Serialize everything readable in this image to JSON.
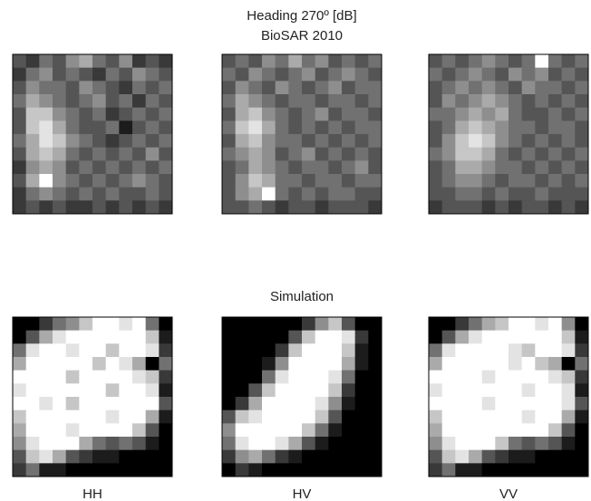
{
  "chart_data": [
    {
      "type": "heatmap",
      "clim": [
        0,
        9
      ],
      "values": [
        [
          3,
          2,
          4,
          3,
          5,
          6,
          4,
          3,
          5,
          2,
          3,
          2
        ],
        [
          2,
          4,
          5,
          3,
          4,
          3,
          2,
          4,
          3,
          5,
          4,
          3
        ],
        [
          3,
          5,
          4,
          4,
          3,
          5,
          4,
          3,
          2,
          4,
          3,
          4
        ],
        [
          4,
          6,
          5,
          4,
          3,
          4,
          5,
          3,
          4,
          2,
          4,
          3
        ],
        [
          3,
          7,
          7,
          5,
          4,
          3,
          4,
          2,
          3,
          4,
          3,
          4
        ],
        [
          3,
          7,
          8,
          6,
          4,
          3,
          3,
          4,
          1,
          3,
          4,
          3
        ],
        [
          4,
          6,
          8,
          7,
          5,
          4,
          3,
          2,
          3,
          4,
          3,
          4
        ],
        [
          3,
          6,
          7,
          6,
          4,
          3,
          4,
          3,
          4,
          3,
          5,
          3
        ],
        [
          2,
          5,
          6,
          5,
          3,
          4,
          3,
          4,
          3,
          4,
          3,
          4
        ],
        [
          3,
          6,
          9,
          5,
          4,
          3,
          4,
          3,
          4,
          5,
          4,
          3
        ],
        [
          2,
          4,
          5,
          4,
          3,
          4,
          3,
          4,
          3,
          3,
          4,
          3
        ],
        [
          2,
          3,
          2,
          3,
          2,
          2,
          3,
          2,
          3,
          2,
          3,
          2
        ]
      ]
    },
    {
      "type": "heatmap",
      "title": "Heading 270º [dB]",
      "subtitle": "BioSAR 2010",
      "clim": [
        0,
        9
      ],
      "values": [
        [
          3,
          4,
          3,
          5,
          4,
          6,
          4,
          5,
          3,
          4,
          3,
          4
        ],
        [
          4,
          3,
          5,
          4,
          3,
          4,
          5,
          3,
          4,
          5,
          4,
          3
        ],
        [
          3,
          5,
          4,
          3,
          5,
          4,
          3,
          4,
          5,
          3,
          4,
          4
        ],
        [
          4,
          6,
          5,
          4,
          3,
          4,
          4,
          3,
          4,
          4,
          3,
          4
        ],
        [
          3,
          6,
          7,
          5,
          4,
          3,
          4,
          5,
          3,
          4,
          4,
          3
        ],
        [
          4,
          7,
          8,
          6,
          4,
          3,
          4,
          3,
          4,
          3,
          4,
          4
        ],
        [
          3,
          6,
          7,
          5,
          4,
          4,
          3,
          4,
          3,
          4,
          3,
          4
        ],
        [
          4,
          5,
          6,
          5,
          3,
          4,
          5,
          3,
          4,
          3,
          4,
          3
        ],
        [
          3,
          4,
          6,
          5,
          4,
          3,
          4,
          4,
          3,
          4,
          5,
          3
        ],
        [
          3,
          5,
          7,
          6,
          4,
          4,
          3,
          4,
          4,
          3,
          4,
          4
        ],
        [
          3,
          5,
          6,
          9,
          4,
          3,
          4,
          3,
          4,
          4,
          3,
          3
        ],
        [
          3,
          3,
          4,
          3,
          2,
          3,
          3,
          2,
          3,
          3,
          3,
          2
        ]
      ]
    },
    {
      "type": "heatmap",
      "clim": [
        0,
        9
      ],
      "values": [
        [
          3,
          4,
          3,
          4,
          5,
          4,
          3,
          4,
          9,
          4,
          3,
          4
        ],
        [
          4,
          3,
          4,
          5,
          4,
          3,
          5,
          4,
          5,
          3,
          4,
          3
        ],
        [
          3,
          4,
          5,
          4,
          5,
          4,
          3,
          5,
          4,
          4,
          3,
          4
        ],
        [
          3,
          5,
          4,
          5,
          6,
          5,
          4,
          3,
          4,
          3,
          4,
          3
        ],
        [
          4,
          4,
          5,
          6,
          5,
          6,
          4,
          3,
          3,
          4,
          3,
          4
        ],
        [
          3,
          4,
          6,
          7,
          6,
          5,
          4,
          4,
          3,
          4,
          4,
          3
        ],
        [
          3,
          5,
          7,
          8,
          7,
          5,
          4,
          3,
          4,
          3,
          4,
          3
        ],
        [
          4,
          5,
          7,
          7,
          6,
          4,
          3,
          4,
          3,
          4,
          3,
          4
        ],
        [
          3,
          4,
          6,
          6,
          5,
          4,
          4,
          3,
          4,
          3,
          4,
          3
        ],
        [
          3,
          4,
          5,
          5,
          4,
          3,
          4,
          4,
          3,
          4,
          3,
          4
        ],
        [
          3,
          3,
          4,
          4,
          3,
          4,
          3,
          3,
          4,
          3,
          3,
          3
        ],
        [
          2,
          3,
          3,
          3,
          2,
          3,
          2,
          3,
          3,
          2,
          3,
          2
        ]
      ]
    },
    {
      "type": "heatmap",
      "xlabel": "HH",
      "clim": [
        0,
        9
      ],
      "values": [
        [
          0,
          0,
          2,
          4,
          5,
          7,
          9,
          9,
          8,
          9,
          4,
          0
        ],
        [
          0,
          3,
          6,
          8,
          9,
          9,
          9,
          9,
          9,
          9,
          7,
          1
        ],
        [
          4,
          8,
          9,
          9,
          8,
          9,
          9,
          7,
          9,
          9,
          8,
          2
        ],
        [
          6,
          9,
          9,
          9,
          9,
          9,
          7,
          9,
          8,
          6,
          0,
          4
        ],
        [
          9,
          9,
          9,
          9,
          7,
          9,
          9,
          9,
          9,
          8,
          7,
          2
        ],
        [
          8,
          9,
          9,
          9,
          9,
          9,
          9,
          7,
          9,
          9,
          8,
          1
        ],
        [
          9,
          9,
          8,
          9,
          7,
          9,
          9,
          9,
          9,
          9,
          9,
          3
        ],
        [
          7,
          9,
          9,
          9,
          9,
          9,
          9,
          8,
          9,
          9,
          6,
          1
        ],
        [
          6,
          9,
          9,
          9,
          8,
          9,
          9,
          9,
          9,
          7,
          3,
          0
        ],
        [
          5,
          8,
          9,
          9,
          9,
          6,
          4,
          3,
          4,
          3,
          1,
          0
        ],
        [
          3,
          7,
          8,
          6,
          3,
          2,
          1,
          1,
          0,
          0,
          0,
          0
        ],
        [
          2,
          4,
          1,
          1,
          0,
          0,
          0,
          0,
          0,
          0,
          0,
          0
        ]
      ]
    },
    {
      "type": "heatmap",
      "title": "Simulation",
      "xlabel": "HV",
      "clim": [
        0,
        9
      ],
      "values": [
        [
          0,
          0,
          0,
          0,
          0,
          0,
          2,
          5,
          7,
          3,
          0,
          0
        ],
        [
          0,
          0,
          0,
          0,
          0,
          3,
          7,
          9,
          9,
          8,
          2,
          0
        ],
        [
          0,
          0,
          0,
          0,
          2,
          7,
          9,
          9,
          9,
          7,
          1,
          0
        ],
        [
          0,
          0,
          0,
          1,
          5,
          9,
          9,
          9,
          9,
          6,
          1,
          0
        ],
        [
          0,
          0,
          0,
          4,
          8,
          9,
          9,
          9,
          8,
          4,
          0,
          0
        ],
        [
          0,
          0,
          3,
          7,
          9,
          9,
          9,
          9,
          7,
          2,
          0,
          0
        ],
        [
          0,
          2,
          6,
          9,
          9,
          9,
          9,
          8,
          5,
          1,
          0,
          0
        ],
        [
          3,
          7,
          8,
          9,
          9,
          9,
          9,
          7,
          3,
          0,
          0,
          0
        ],
        [
          5,
          9,
          9,
          9,
          9,
          9,
          7,
          4,
          1,
          0,
          0,
          0
        ],
        [
          4,
          8,
          9,
          9,
          8,
          6,
          3,
          1,
          0,
          0,
          0,
          0
        ],
        [
          2,
          5,
          6,
          4,
          2,
          1,
          0,
          0,
          0,
          0,
          0,
          0
        ],
        [
          0,
          2,
          1,
          0,
          0,
          0,
          0,
          0,
          0,
          0,
          0,
          0
        ]
      ]
    },
    {
      "type": "heatmap",
      "xlabel": "VV",
      "clim": [
        0,
        9
      ],
      "values": [
        [
          0,
          0,
          2,
          4,
          6,
          7,
          9,
          9,
          8,
          9,
          5,
          0
        ],
        [
          0,
          3,
          6,
          8,
          9,
          9,
          9,
          9,
          9,
          9,
          7,
          1
        ],
        [
          4,
          8,
          9,
          9,
          9,
          9,
          8,
          7,
          9,
          9,
          8,
          2
        ],
        [
          6,
          9,
          9,
          9,
          9,
          9,
          8,
          9,
          7,
          6,
          0,
          4
        ],
        [
          9,
          9,
          9,
          9,
          8,
          9,
          9,
          9,
          9,
          8,
          7,
          2
        ],
        [
          8,
          9,
          9,
          9,
          9,
          9,
          9,
          8,
          9,
          9,
          8,
          1
        ],
        [
          9,
          9,
          9,
          9,
          8,
          9,
          9,
          9,
          9,
          9,
          8,
          3
        ],
        [
          7,
          9,
          9,
          9,
          9,
          9,
          9,
          8,
          9,
          9,
          6,
          1
        ],
        [
          6,
          9,
          9,
          9,
          9,
          9,
          9,
          9,
          9,
          7,
          3,
          0
        ],
        [
          5,
          8,
          9,
          9,
          9,
          7,
          4,
          3,
          4,
          3,
          1,
          0
        ],
        [
          3,
          7,
          8,
          6,
          3,
          2,
          1,
          1,
          0,
          0,
          0,
          0
        ],
        [
          2,
          4,
          1,
          1,
          0,
          0,
          0,
          0,
          0,
          0,
          0,
          0
        ]
      ]
    }
  ]
}
